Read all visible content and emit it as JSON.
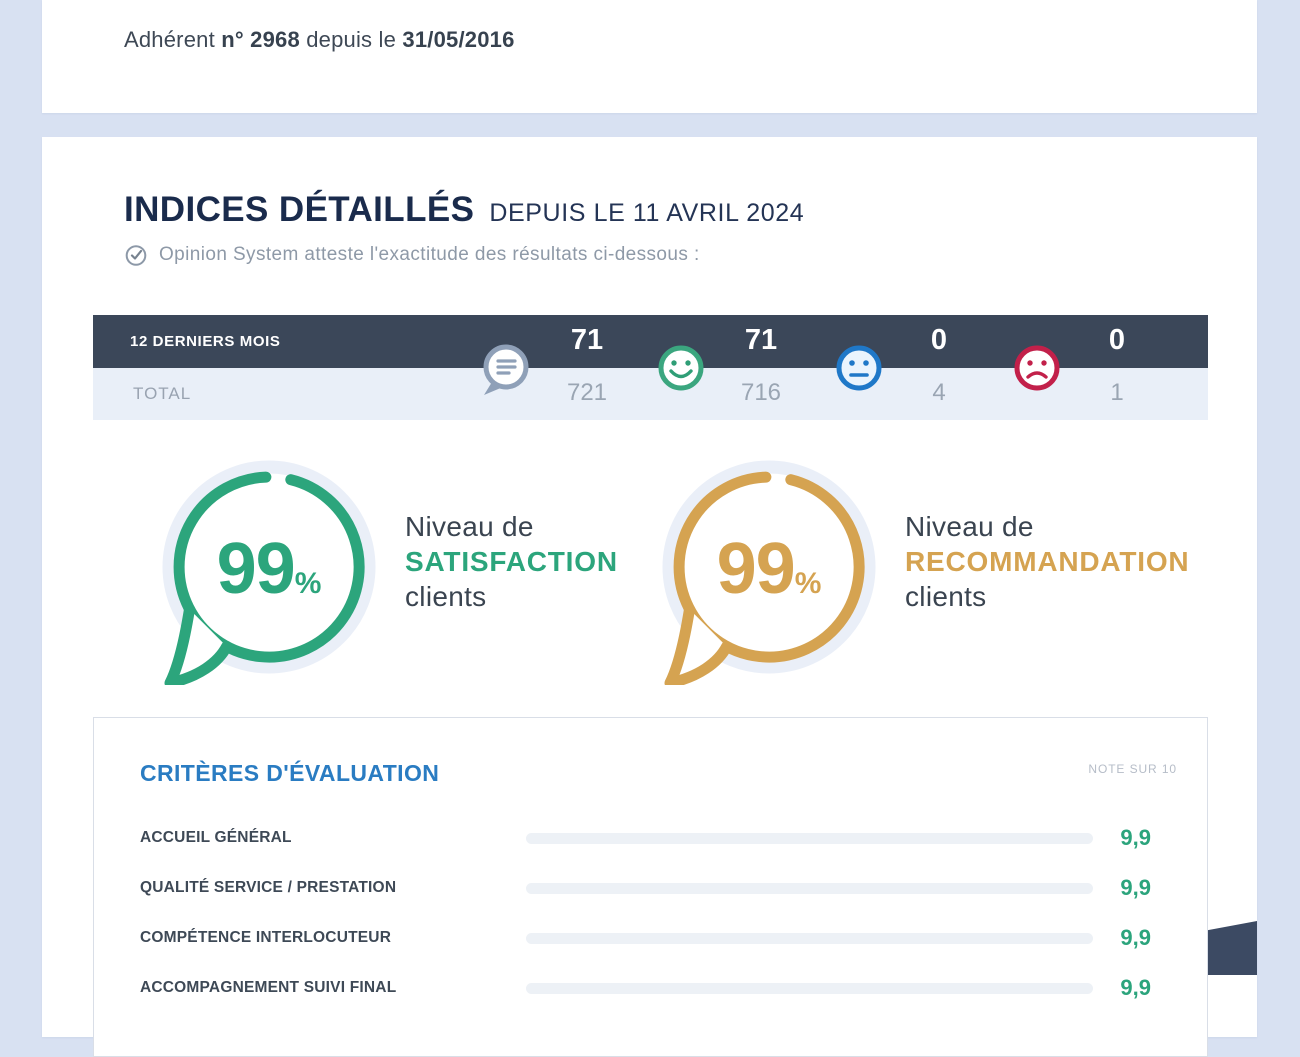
{
  "membership": {
    "prefix": "Adhérent",
    "number": "n° 2968",
    "connector": "depuis le",
    "date": "31/05/2016"
  },
  "header": {
    "title": "INDICES DÉTAILLÉS",
    "period": "DEPUIS LE 11 AVRIL 2024",
    "attestation": "Opinion System atteste l'exactitude des résultats ci-dessous :"
  },
  "stats_table": {
    "recent_label": "12 DERNIERS MOIS",
    "total_label": "TOTAL",
    "columns": [
      {
        "icon": "speech-bubble-icon",
        "recent": "71",
        "total": "721"
      },
      {
        "icon": "happy-face-icon",
        "recent": "71",
        "total": "716"
      },
      {
        "icon": "neutral-face-icon",
        "recent": "0",
        "total": "4"
      },
      {
        "icon": "sad-face-icon",
        "recent": "0",
        "total": "1"
      }
    ]
  },
  "gauges": [
    {
      "value": "99",
      "unit": "%",
      "line1": "Niveau de",
      "highlight": "SATISFACTION",
      "line3": "clients",
      "color": "#2ca57c"
    },
    {
      "value": "99",
      "unit": "%",
      "line1": "Niveau de",
      "highlight": "RECOMMANDATION",
      "line3": "clients",
      "color": "#d5a351"
    }
  ],
  "criteria": {
    "title": "CRITÈRES D'ÉVALUATION",
    "scale_note": "NOTE SUR 10",
    "max_score": 10,
    "rows": [
      {
        "label": "ACCUEIL GÉNÉRAL",
        "score": "9,9",
        "value": 9.9
      },
      {
        "label": "QUALITÉ SERVICE / PRESTATION",
        "score": "9,9",
        "value": 9.9
      },
      {
        "label": "COMPÉTENCE INTERLOCUTEUR",
        "score": "9,9",
        "value": 9.9
      },
      {
        "label": "ACCOMPAGNEMENT SUIVI FINAL",
        "score": "9,9",
        "value": 9.9
      }
    ]
  },
  "colors": {
    "page_bg": "#d8e1f2",
    "card_bg": "#ffffff",
    "table_header": "#3b4759",
    "table_row": "#e9eff8",
    "title_navy": "#1a2b4c",
    "green": "#2ca57c",
    "gold": "#d5a351",
    "blue_accent": "#2a7cc2",
    "neutral_blue": "#1f78c8",
    "alert_red": "#c2204a",
    "muted_gray": "#99a3b1",
    "wedge_navy": "#3c4a63"
  }
}
